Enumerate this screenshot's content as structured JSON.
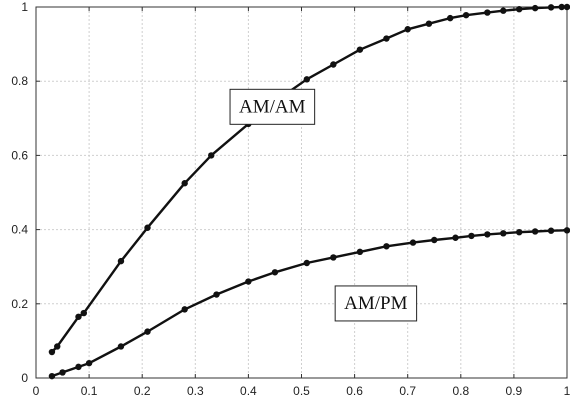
{
  "chart_data": {
    "type": "line",
    "title": "",
    "xlabel": "",
    "ylabel": "",
    "xlim": [
      0,
      1
    ],
    "ylim": [
      0,
      1
    ],
    "xticks": [
      "0",
      "0.1",
      "0.2",
      "0.3",
      "0.4",
      "0.5",
      "0.6",
      "0.7",
      "0.8",
      "0.9",
      "1"
    ],
    "yticks": [
      "0",
      "0.2",
      "0.4",
      "0.6",
      "0.8",
      "1"
    ],
    "grid": true,
    "legend": "none",
    "colors": {
      "line": "#111111",
      "grid": "#cfcfcf",
      "axis": "#333333"
    },
    "series": [
      {
        "x": [
          0.03,
          0.04,
          0.08,
          0.09,
          0.16,
          0.21,
          0.28,
          0.33,
          0.4,
          0.45,
          0.51,
          0.56,
          0.61,
          0.66,
          0.7,
          0.74,
          0.78,
          0.81,
          0.85,
          0.88,
          0.91,
          0.94,
          0.97,
          0.99,
          1.0
        ],
        "y": [
          0.07,
          0.085,
          0.165,
          0.175,
          0.315,
          0.405,
          0.525,
          0.6,
          0.685,
          0.745,
          0.805,
          0.845,
          0.885,
          0.915,
          0.94,
          0.955,
          0.97,
          0.978,
          0.985,
          0.99,
          0.994,
          0.997,
          0.999,
          1.0,
          1.0
        ]
      },
      {
        "x": [
          0.03,
          0.05,
          0.08,
          0.1,
          0.16,
          0.21,
          0.28,
          0.34,
          0.4,
          0.45,
          0.51,
          0.56,
          0.61,
          0.66,
          0.71,
          0.75,
          0.79,
          0.82,
          0.85,
          0.88,
          0.91,
          0.94,
          0.97,
          1.0
        ],
        "y": [
          0.005,
          0.015,
          0.03,
          0.04,
          0.085,
          0.125,
          0.185,
          0.225,
          0.26,
          0.285,
          0.31,
          0.325,
          0.34,
          0.355,
          0.365,
          0.372,
          0.378,
          0.383,
          0.387,
          0.39,
          0.393,
          0.395,
          0.397,
          0.398
        ]
      }
    ],
    "annotations": [
      {
        "text": "AM/AM",
        "x": 0.445,
        "y": 0.735
      },
      {
        "text": "AM/PM",
        "x": 0.64,
        "y": 0.205
      }
    ]
  }
}
